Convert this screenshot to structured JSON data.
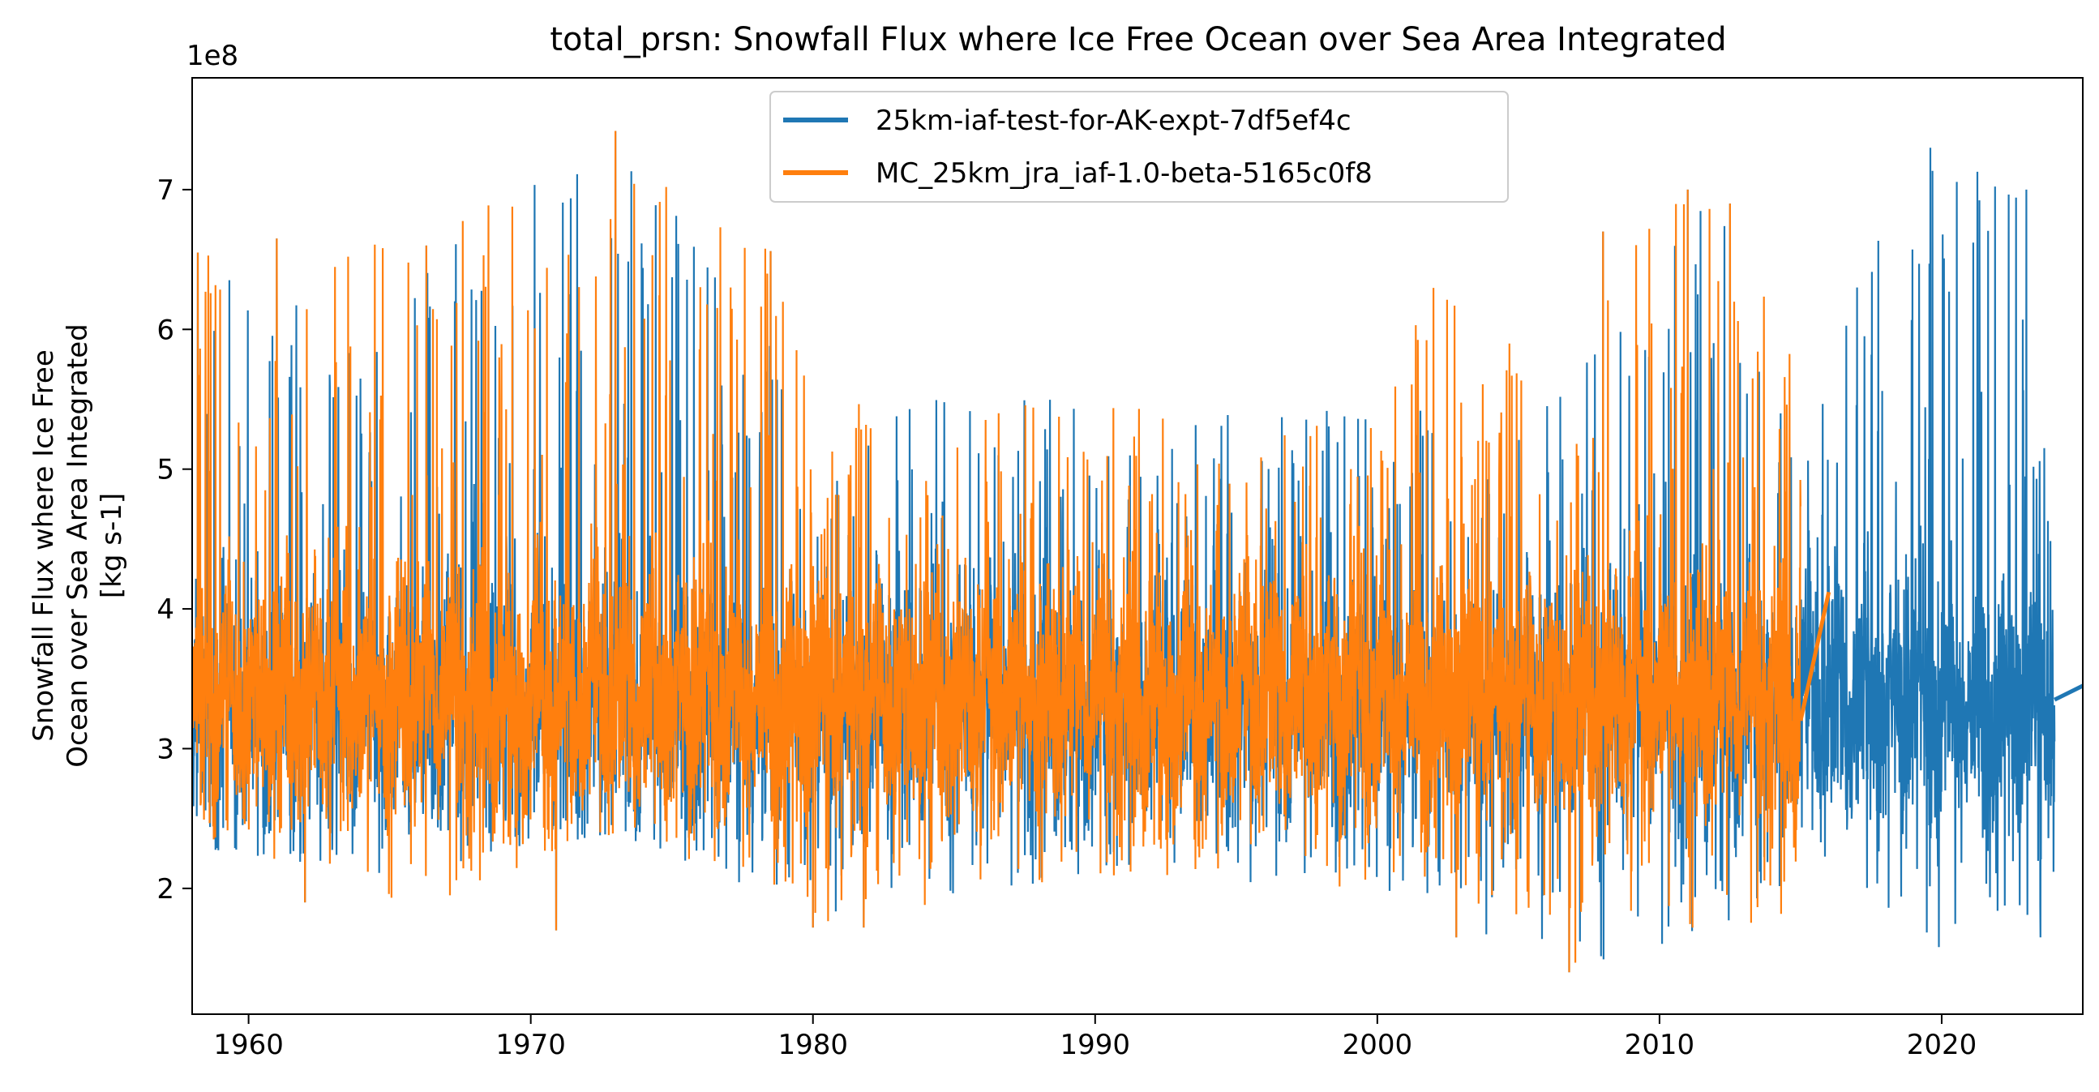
{
  "chart_data": {
    "type": "line",
    "title": "total_prsn: Snowfall Flux where Ice Free Ocean over Sea Area Integrated",
    "xlabel": "",
    "ylabel_lines": [
      "Snowfall Flux where Ice Free",
      "Ocean over Sea Area Integrated",
      "[kg s-1]"
    ],
    "y_offset_label": "1e8",
    "xlim": [
      1958,
      2025
    ],
    "ylim": [
      1.1,
      7.8
    ],
    "x_ticks": [
      1960,
      1970,
      1980,
      1990,
      2000,
      2010,
      2020
    ],
    "x_tick_labels": [
      "1960",
      "1970",
      "1980",
      "1990",
      "2000",
      "2010",
      "2020"
    ],
    "y_ticks": [
      2,
      3,
      4,
      5,
      6,
      7
    ],
    "y_tick_labels": [
      "2",
      "3",
      "4",
      "5",
      "6",
      "7"
    ],
    "grid": false,
    "legend_position": "upper center",
    "series": [
      {
        "name": "25km-iaf-test-for-AK-expt-7df5ef4c",
        "color": "#1f77b4",
        "x_range": [
          1958.0,
          2024.0
        ],
        "mean": 3.3,
        "envelope": [
          {
            "x": 1958.0,
            "low": 2.3,
            "high": 6.5
          },
          {
            "x": 1965.0,
            "low": 2.1,
            "high": 6.4
          },
          {
            "x": 1973.0,
            "low": 2.4,
            "high": 7.4
          },
          {
            "x": 1980.0,
            "low": 1.8,
            "high": 5.5
          },
          {
            "x": 1990.0,
            "low": 2.1,
            "high": 5.5
          },
          {
            "x": 2000.0,
            "low": 2.0,
            "high": 5.4
          },
          {
            "x": 2006.8,
            "low": 1.4,
            "high": 5.6
          },
          {
            "x": 2012.0,
            "low": 1.7,
            "high": 7.0
          },
          {
            "x": 2015.0,
            "low": 2.0,
            "high": 5.5
          },
          {
            "x": 2019.0,
            "low": 1.6,
            "high": 7.3
          },
          {
            "x": 2023.0,
            "low": 1.7,
            "high": 7.0
          },
          {
            "x": 2024.0,
            "low": 2.0,
            "high": 4.7
          }
        ],
        "tail": [
          {
            "x": 2024.0,
            "y": 3.35
          },
          {
            "x": 2025.0,
            "y": 3.45
          }
        ]
      },
      {
        "name": "MC_25km_jra_iaf-1.0-beta-5165c0f8",
        "color": "#ff7f0e",
        "x_range": [
          1958.0,
          2015.0
        ],
        "mean": 3.35,
        "envelope": [
          {
            "x": 1958.0,
            "low": 2.3,
            "high": 6.55
          },
          {
            "x": 1961.0,
            "low": 2.2,
            "high": 6.65
          },
          {
            "x": 1966.0,
            "low": 1.85,
            "high": 6.6
          },
          {
            "x": 1973.0,
            "low": 2.4,
            "high": 7.42
          },
          {
            "x": 1978.5,
            "low": 2.0,
            "high": 6.55
          },
          {
            "x": 1980.0,
            "low": 1.72,
            "high": 5.5
          },
          {
            "x": 1990.0,
            "low": 2.1,
            "high": 5.45
          },
          {
            "x": 2000.0,
            "low": 2.0,
            "high": 5.35
          },
          {
            "x": 2002.0,
            "low": 2.1,
            "high": 6.35
          },
          {
            "x": 2006.8,
            "low": 1.4,
            "high": 5.6
          },
          {
            "x": 2008.0,
            "low": 1.7,
            "high": 6.7
          },
          {
            "x": 2012.0,
            "low": 1.7,
            "high": 7.02
          },
          {
            "x": 2015.0,
            "low": 1.8,
            "high": 5.65
          }
        ],
        "tail": [
          {
            "x": 2015.0,
            "y": 3.2
          },
          {
            "x": 2016.0,
            "y": 4.12
          }
        ]
      }
    ],
    "notable_peaks": [
      {
        "x": 1958.2,
        "y": 6.55
      },
      {
        "x": 1961.0,
        "y": 6.65
      },
      {
        "x": 1966.3,
        "y": 6.6
      },
      {
        "x": 1973.0,
        "y": 7.42
      },
      {
        "x": 1978.5,
        "y": 6.56
      },
      {
        "x": 2008.0,
        "y": 6.7
      },
      {
        "x": 2011.0,
        "y": 7.0
      },
      {
        "x": 2012.5,
        "y": 6.9
      },
      {
        "x": 2017.0,
        "y": 6.3
      },
      {
        "x": 2019.6,
        "y": 7.3
      },
      {
        "x": 2023.0,
        "y": 7.0
      }
    ],
    "notable_troughs": [
      {
        "x": 1962.0,
        "y": 1.9
      },
      {
        "x": 1970.9,
        "y": 1.7
      },
      {
        "x": 1980.0,
        "y": 1.72
      },
      {
        "x": 1981.8,
        "y": 1.72
      },
      {
        "x": 2002.8,
        "y": 1.65
      },
      {
        "x": 2006.8,
        "y": 1.4
      },
      {
        "x": 2019.9,
        "y": 1.58
      },
      {
        "x": 2023.5,
        "y": 1.65
      }
    ]
  }
}
